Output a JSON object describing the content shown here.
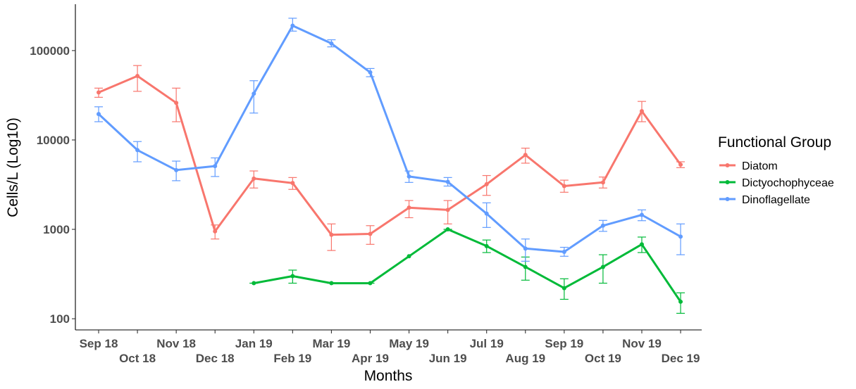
{
  "chart_data": {
    "type": "line",
    "xlabel": "Months",
    "ylabel": "Cells/L (Log10)",
    "y_scale": "log10",
    "ylim": [
      75,
      330000
    ],
    "y_ticks": [
      100,
      1000,
      10000,
      100000
    ],
    "y_tick_labels": [
      "100",
      "1000",
      "10000",
      "100000"
    ],
    "grid": false,
    "categories": [
      "Sep 18",
      "Oct 18",
      "Nov 18",
      "Dec 18",
      "Jan 19",
      "Feb 19",
      "Mar 19",
      "Apr 19",
      "May 19",
      "Jun 19",
      "Jul 19",
      "Aug 19",
      "Sep 19",
      "Oct 19",
      "Nov 19",
      "Dec 19"
    ],
    "legend": {
      "title": "Functional Group",
      "position": "right"
    },
    "series": [
      {
        "name": "Diatom",
        "color": "#F8766D",
        "values": [
          34000,
          52000,
          26000,
          950,
          3700,
          3300,
          870,
          890,
          1750,
          1650,
          3200,
          6800,
          3050,
          3350,
          21000,
          5300
        ],
        "err_low": [
          30000,
          35000,
          16000,
          780,
          2900,
          2800,
          580,
          680,
          1350,
          1150,
          2400,
          5500,
          2600,
          2900,
          16000,
          4900
        ],
        "err_high": [
          38000,
          68000,
          38000,
          1120,
          4500,
          3800,
          1150,
          1100,
          2100,
          2100,
          4000,
          8100,
          3550,
          3850,
          27000,
          5700
        ]
      },
      {
        "name": "Dictyochophyceae",
        "color": "#00BA38",
        "values": [
          null,
          null,
          null,
          null,
          250,
          300,
          250,
          250,
          500,
          1000,
          650,
          380,
          220,
          380,
          680,
          155
        ],
        "err_low": [
          null,
          null,
          null,
          null,
          250,
          250,
          250,
          250,
          null,
          1000,
          550,
          270,
          165,
          250,
          550,
          115
        ],
        "err_high": [
          null,
          null,
          null,
          null,
          250,
          350,
          250,
          250,
          null,
          1000,
          760,
          490,
          280,
          520,
          820,
          195
        ]
      },
      {
        "name": "Dinoflagellate",
        "color": "#619CFF",
        "values": [
          19500,
          7700,
          4600,
          5100,
          33000,
          190000,
          120000,
          57000,
          3900,
          3400,
          1500,
          610,
          560,
          1100,
          1450,
          830
        ],
        "err_low": [
          16000,
          5700,
          3500,
          3900,
          20000,
          165000,
          110000,
          51000,
          3350,
          3050,
          1050,
          440,
          500,
          950,
          1250,
          520
        ],
        "err_high": [
          23500,
          9600,
          5800,
          6300,
          46000,
          230000,
          132000,
          63000,
          4500,
          3800,
          1980,
          780,
          630,
          1260,
          1650,
          1150
        ]
      }
    ]
  }
}
